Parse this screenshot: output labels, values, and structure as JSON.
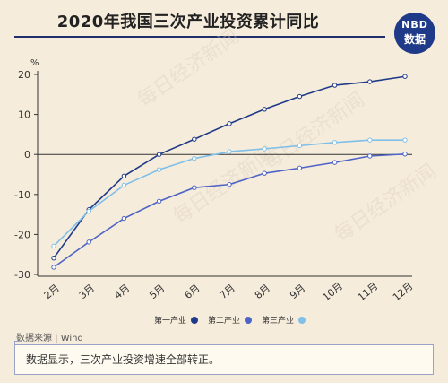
{
  "header": {
    "title": "2020年我国三次产业投资累计同比",
    "logo_line1": "NBD",
    "logo_line2": "数据"
  },
  "watermark": "每日经济新闻",
  "chart_data": {
    "type": "line",
    "title": "2020年我国三次产业投资累计同比",
    "ylabel": "%",
    "ylim": [
      -30,
      20
    ],
    "yticks": [
      -30,
      -20,
      -10,
      0,
      10,
      20
    ],
    "categories": [
      "2月",
      "3月",
      "4月",
      "5月",
      "6月",
      "7月",
      "8月",
      "9月",
      "10月",
      "11月",
      "12月"
    ],
    "series": [
      {
        "name": "第一产业",
        "color": "#1f3a88",
        "values": [
          -25.9,
          -13.8,
          -5.4,
          0.0,
          3.8,
          7.7,
          11.3,
          14.5,
          17.3,
          18.2,
          19.5
        ]
      },
      {
        "name": "第二产业",
        "color": "#4d63c6",
        "values": [
          -28.2,
          -21.9,
          -16.0,
          -11.7,
          -8.3,
          -7.5,
          -4.7,
          -3.4,
          -2.0,
          -0.4,
          0.1
        ]
      },
      {
        "name": "第三产业",
        "color": "#7fbfe8",
        "values": [
          -22.9,
          -14.2,
          -7.7,
          -3.8,
          -1.0,
          0.7,
          1.4,
          2.2,
          3.0,
          3.6,
          3.6
        ]
      }
    ],
    "grid": false,
    "legend": "bottom"
  },
  "footer": {
    "source": "数据来源 | Wind",
    "note": "数据显示，三次产业投资增速全部转正。"
  }
}
